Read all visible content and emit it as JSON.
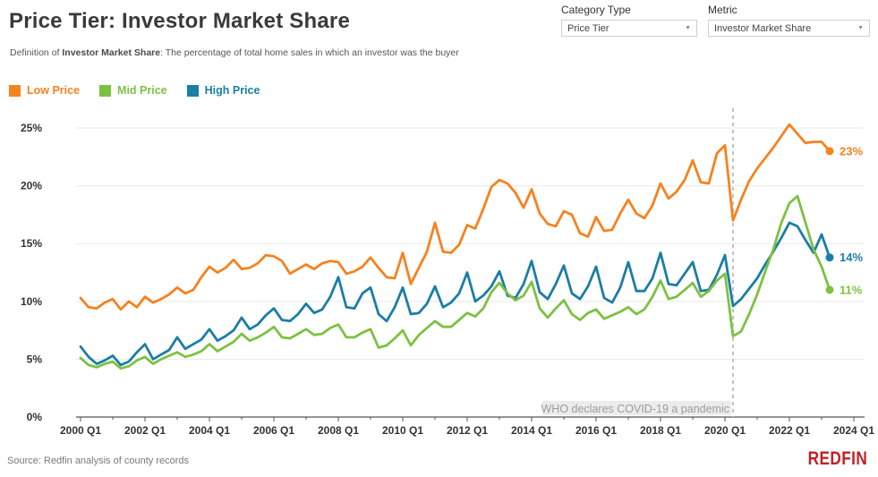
{
  "header": {
    "title": "Price Tier: Investor Market Share",
    "subtitle_prefix": "Definition of ",
    "subtitle_term": "Investor Market Share",
    "subtitle_rest": ": The percentage of total home sales in which an investor was the buyer"
  },
  "controls": {
    "category_label": "Category Type",
    "category_value": "Price Tier",
    "metric_label": "Metric",
    "metric_value": "Investor Market Share",
    "caret": "▼"
  },
  "legend": {
    "items": [
      {
        "label": "Low Price",
        "color": "#F5821F"
      },
      {
        "label": "Mid Price",
        "color": "#7DC142"
      },
      {
        "label": "High Price",
        "color": "#1B7EA5"
      }
    ]
  },
  "annotation": {
    "text": "WHO declares COVID-19 a pandemic",
    "position": "2020 Q2"
  },
  "footer": {
    "source": "Source: Redfin analysis of county records",
    "brand": "REDFIN"
  },
  "chart_data": {
    "type": "line",
    "x_unit": "quarter",
    "x_start": "2000 Q1",
    "x_end": "2023 Q2",
    "x_tick_labels": [
      "2000 Q1",
      "2002 Q1",
      "2004 Q1",
      "2006 Q1",
      "2008 Q1",
      "2010 Q1",
      "2012 Q1",
      "2014 Q1",
      "2016 Q1",
      "2018 Q1",
      "2020 Q1",
      "2022 Q1",
      "2024 Q1"
    ],
    "y_ticks": [
      0,
      5,
      10,
      15,
      20,
      25
    ],
    "y_tick_labels": [
      "0%",
      "5%",
      "10%",
      "15%",
      "20%",
      "25%"
    ],
    "ylim": [
      0,
      26.7
    ],
    "grid": true,
    "legend_position": "top-left",
    "series": [
      {
        "name": "High Price",
        "color": "#1B7EA5",
        "end_label": "14%",
        "values": [
          6.1,
          5.2,
          4.6,
          4.9,
          5.3,
          4.5,
          4.8,
          5.6,
          6.3,
          5.0,
          5.4,
          5.8,
          6.9,
          5.9,
          6.3,
          6.7,
          7.6,
          6.6,
          7.0,
          7.5,
          8.6,
          7.6,
          8.0,
          8.8,
          9.4,
          8.4,
          8.3,
          8.9,
          9.8,
          9.0,
          9.3,
          10.4,
          12.1,
          9.5,
          9.4,
          10.7,
          11.2,
          8.9,
          8.3,
          9.5,
          11.2,
          8.9,
          9.0,
          9.8,
          11.3,
          9.5,
          9.9,
          10.7,
          12.5,
          10.0,
          10.5,
          11.3,
          12.6,
          10.5,
          10.3,
          11.5,
          13.5,
          10.8,
          10.2,
          11.5,
          13.1,
          10.7,
          10.2,
          11.3,
          13.0,
          10.3,
          9.9,
          11.2,
          13.4,
          10.9,
          10.9,
          12.0,
          14.2,
          11.5,
          11.4,
          12.4,
          13.4,
          10.9,
          11.0,
          12.3,
          14.0,
          9.6,
          10.2,
          11.1,
          12.0,
          13.2,
          14.3,
          15.5,
          16.8,
          16.5,
          15.3,
          14.2,
          15.8,
          13.8
        ]
      },
      {
        "name": "Mid Price",
        "color": "#7DC142",
        "end_label": "11%",
        "values": [
          5.1,
          4.5,
          4.3,
          4.6,
          4.8,
          4.2,
          4.4,
          4.9,
          5.2,
          4.6,
          5.0,
          5.3,
          5.6,
          5.2,
          5.4,
          5.7,
          6.3,
          5.7,
          6.1,
          6.5,
          7.2,
          6.6,
          6.9,
          7.3,
          7.8,
          6.9,
          6.8,
          7.2,
          7.6,
          7.1,
          7.2,
          7.7,
          8.0,
          6.9,
          6.9,
          7.3,
          7.6,
          6.0,
          6.2,
          6.8,
          7.5,
          6.2,
          7.1,
          7.7,
          8.3,
          7.8,
          7.8,
          8.4,
          9.0,
          8.7,
          9.4,
          10.8,
          11.6,
          10.7,
          10.1,
          10.5,
          11.7,
          9.4,
          8.6,
          9.4,
          10.1,
          8.9,
          8.4,
          9.0,
          9.3,
          8.5,
          8.8,
          9.1,
          9.5,
          8.9,
          9.3,
          10.4,
          11.8,
          10.2,
          10.4,
          11.0,
          11.6,
          10.4,
          10.9,
          11.8,
          12.4,
          7.0,
          7.4,
          8.9,
          10.6,
          12.6,
          14.5,
          16.8,
          18.5,
          19.1,
          16.8,
          14.5,
          13.0,
          11.0
        ]
      },
      {
        "name": "Low Price",
        "color": "#F5821F",
        "end_label": "23%",
        "values": [
          10.3,
          9.5,
          9.4,
          9.9,
          10.2,
          9.3,
          10.0,
          9.5,
          10.4,
          9.9,
          10.2,
          10.6,
          11.2,
          10.7,
          11.0,
          12.1,
          13.0,
          12.5,
          12.9,
          13.6,
          12.8,
          12.9,
          13.3,
          14.0,
          13.9,
          13.5,
          12.4,
          12.8,
          13.2,
          12.8,
          13.3,
          13.5,
          13.4,
          12.4,
          12.6,
          13.0,
          13.8,
          12.9,
          12.1,
          12.0,
          14.2,
          11.5,
          12.9,
          14.3,
          16.8,
          14.3,
          14.2,
          14.9,
          16.6,
          16.3,
          18.0,
          19.9,
          20.5,
          20.2,
          19.4,
          18.1,
          19.7,
          17.6,
          16.7,
          16.5,
          17.8,
          17.5,
          15.9,
          15.6,
          17.3,
          16.1,
          16.2,
          17.6,
          18.8,
          17.6,
          17.2,
          18.3,
          20.2,
          18.9,
          19.5,
          20.5,
          22.2,
          20.3,
          20.2,
          22.8,
          23.5,
          17.0,
          18.8,
          20.4,
          21.5,
          22.4,
          23.3,
          24.3,
          25.3,
          24.5,
          23.7,
          23.8,
          23.8,
          23.0
        ]
      }
    ]
  }
}
